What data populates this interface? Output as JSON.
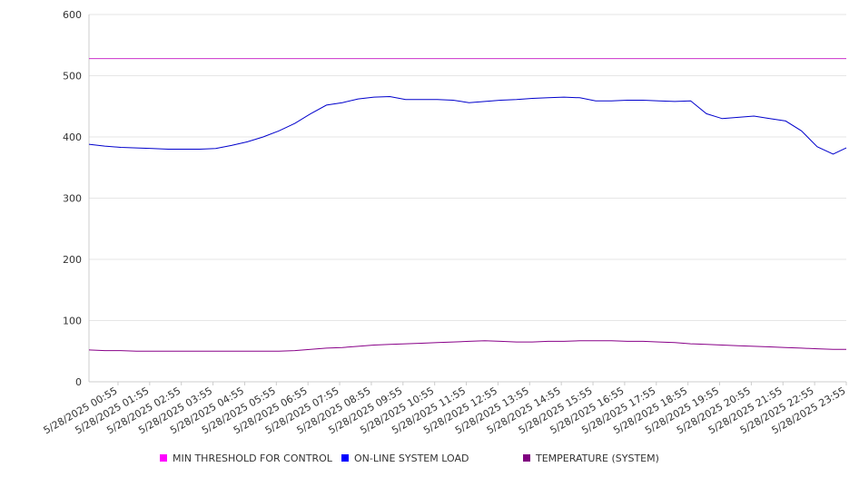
{
  "chart_data": {
    "type": "line",
    "title": "",
    "xlabel": "",
    "ylabel": "",
    "ylim": [
      0,
      600
    ],
    "y_ticks": [
      0,
      100,
      200,
      300,
      400,
      500,
      600
    ],
    "x_tick_labels": [
      "5/28/2025 00:55",
      "5/28/2025 01:55",
      "5/28/2025 02:55",
      "5/28/2025 03:55",
      "5/28/2025 04:55",
      "5/28/2025 05:55",
      "5/28/2025 06:55",
      "5/28/2025 07:55",
      "5/28/2025 08:55",
      "5/28/2025 09:55",
      "5/28/2025 10:55",
      "5/28/2025 11:55",
      "5/28/2025 12:55",
      "5/28/2025 13:55",
      "5/28/2025 14:55",
      "5/28/2025 15:55",
      "5/28/2025 16:55",
      "5/28/2025 17:55",
      "5/28/2025 18:55",
      "5/28/2025 19:55",
      "5/28/2025 20:55",
      "5/28/2025 21:55",
      "5/28/2025 22:55",
      "5/28/2025 23:55"
    ],
    "x": [
      "5/28/2025 00:00",
      "5/28/2025 00:30",
      "5/28/2025 01:00",
      "5/28/2025 01:30",
      "5/28/2025 02:00",
      "5/28/2025 02:30",
      "5/28/2025 03:00",
      "5/28/2025 03:30",
      "5/28/2025 04:00",
      "5/28/2025 04:30",
      "5/28/2025 05:00",
      "5/28/2025 05:30",
      "5/28/2025 06:00",
      "5/28/2025 06:30",
      "5/28/2025 07:00",
      "5/28/2025 07:30",
      "5/28/2025 08:00",
      "5/28/2025 08:30",
      "5/28/2025 09:00",
      "5/28/2025 09:30",
      "5/28/2025 10:00",
      "5/28/2025 10:30",
      "5/28/2025 11:00",
      "5/28/2025 11:30",
      "5/28/2025 12:00",
      "5/28/2025 12:30",
      "5/28/2025 13:00",
      "5/28/2025 13:30",
      "5/28/2025 14:00",
      "5/28/2025 14:30",
      "5/28/2025 15:00",
      "5/28/2025 15:30",
      "5/28/2025 16:00",
      "5/28/2025 16:30",
      "5/28/2025 17:00",
      "5/28/2025 17:30",
      "5/28/2025 18:00",
      "5/28/2025 18:30",
      "5/28/2025 19:00",
      "5/28/2025 19:30",
      "5/28/2025 20:00",
      "5/28/2025 20:30",
      "5/28/2025 21:00",
      "5/28/2025 21:30",
      "5/28/2025 22:00",
      "5/28/2025 22:30",
      "5/28/2025 23:00",
      "5/28/2025 23:30",
      "5/28/2025 23:55"
    ],
    "series": [
      {
        "name": "MIN THRESHOLD FOR CONTROL",
        "color": "#cc33cc",
        "legend_color": "#ff00ff",
        "values": [
          528,
          528,
          528,
          528,
          528,
          528,
          528,
          528,
          528,
          528,
          528,
          528,
          528,
          528,
          528,
          528,
          528,
          528,
          528,
          528,
          528,
          528,
          528,
          528,
          528,
          528,
          528,
          528,
          528,
          528,
          528,
          528,
          528,
          528,
          528,
          528,
          528,
          528,
          528,
          528,
          528,
          528,
          528,
          528,
          528,
          528,
          528,
          528,
          528
        ]
      },
      {
        "name": "ON-LINE SYSTEM LOAD",
        "color": "#0000cc",
        "legend_color": "#0000ff",
        "values": [
          388,
          385,
          383,
          382,
          381,
          380,
          380,
          380,
          381,
          386,
          392,
          400,
          410,
          422,
          438,
          452,
          456,
          462,
          465,
          466,
          461,
          461,
          461,
          460,
          456,
          458,
          460,
          461,
          463,
          464,
          465,
          464,
          459,
          459,
          460,
          460,
          459,
          458,
          459,
          438,
          430,
          432,
          434,
          430,
          426,
          410,
          384,
          372,
          382
        ]
      },
      {
        "name": "TEMPERATURE (SYSTEM)",
        "color": "#880088",
        "legend_color": "#800080",
        "values": [
          52,
          51,
          51,
          50,
          50,
          50,
          50,
          50,
          50,
          50,
          50,
          50,
          50,
          51,
          53,
          55,
          56,
          58,
          60,
          61,
          62,
          63,
          64,
          65,
          66,
          67,
          66,
          65,
          65,
          66,
          66,
          67,
          67,
          67,
          66,
          66,
          65,
          64,
          62,
          61,
          60,
          59,
          58,
          57,
          56,
          55,
          54,
          53,
          53
        ]
      }
    ],
    "grid": true,
    "legend": "bottom"
  }
}
